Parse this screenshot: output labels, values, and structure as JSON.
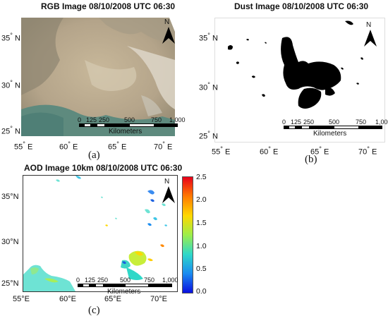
{
  "panels": [
    {
      "title": "RGB Image 08/10/2008 UTC 06:30",
      "caption": "(a)",
      "lat_labels": [
        "35",
        "30",
        "25"
      ],
      "lon_labels": [
        "55",
        "60",
        "65",
        "70"
      ],
      "lat_suffix": "N",
      "lon_suffix": "E"
    },
    {
      "title": "Dust Image 08/10/2008 UTC 06:30",
      "caption": "(b)",
      "lat_labels": [
        "35",
        "30",
        "25"
      ],
      "lon_labels": [
        "55",
        "60",
        "65",
        "70"
      ],
      "lat_suffix": "N",
      "lon_suffix": "E"
    },
    {
      "title": "AOD Image 10km 08/10/2008 UTC 06:30",
      "caption": "(c)",
      "lat_labels": [
        "35°N",
        "30°N",
        "25°N"
      ],
      "lon_labels": [
        "55°E",
        "60°E",
        "65°E",
        "70°E"
      ]
    }
  ],
  "scale_bar": {
    "ticks": [
      "0",
      "125",
      "250",
      "500",
      "750",
      "1,000"
    ],
    "unit": "Kilometers"
  },
  "north_arrow": "N",
  "colorbar": {
    "ticks": [
      "2.5",
      "2.0",
      "1.5",
      "1.0",
      "0.5",
      "0.0"
    ],
    "colors": [
      "#e8001a",
      "#ff7a00",
      "#ffd800",
      "#9dee4a",
      "#2fd8c8",
      "#1a8cf0",
      "#0a10e0"
    ]
  }
}
